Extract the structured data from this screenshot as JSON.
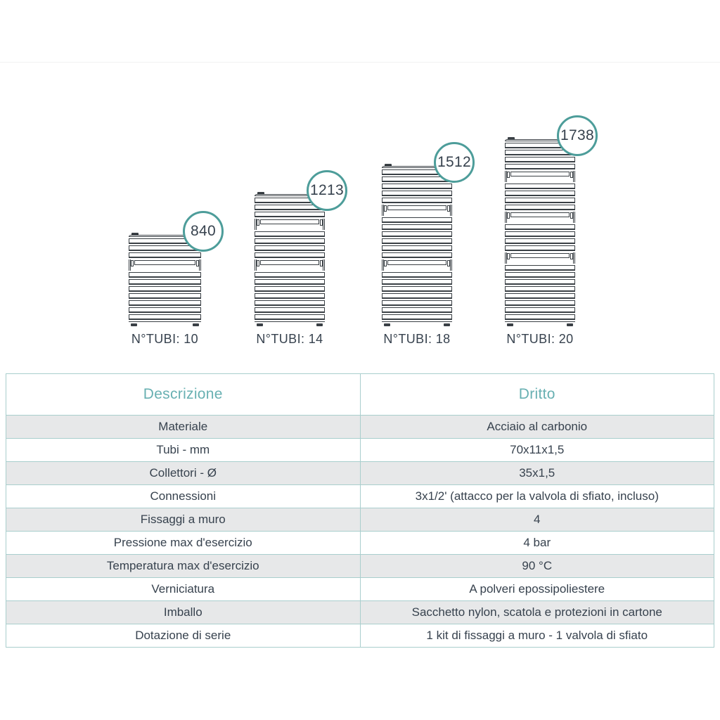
{
  "accent_colors": {
    "teal": "#4d9d9a",
    "header_teal": "#68b0b2",
    "table_border": "#a9cecd",
    "dark_text": "#37424e",
    "row_gray": "#e7e8e9",
    "drawing_line": "#3a4045"
  },
  "diagram": {
    "radiators": [
      {
        "height_label": "840",
        "tubes_label": "N°TUBI: 10",
        "tube_groups": [
          3,
          7
        ]
      },
      {
        "height_label": "1213",
        "tubes_label": "N°TUBI: 14",
        "tube_groups": [
          3,
          4,
          7
        ]
      },
      {
        "height_label": "1512",
        "tubes_label": "N°TUBI: 18",
        "tube_groups": [
          5,
          6,
          7
        ]
      },
      {
        "height_label": "1738",
        "tubes_label": "N°TUBI: 20",
        "tube_groups": [
          4,
          4,
          4,
          8
        ]
      }
    ]
  },
  "table": {
    "headers": [
      "Descrizione",
      "Dritto"
    ],
    "rows": [
      [
        "Materiale",
        "Acciaio al carbonio"
      ],
      [
        "Tubi - mm",
        "70x11x1,5"
      ],
      [
        "Collettori - Ø",
        "35x1,5"
      ],
      [
        "Connessioni",
        "3x1/2' (attacco per la valvola di sfiato, incluso)"
      ],
      [
        "Fissaggi a muro",
        "4"
      ],
      [
        "Pressione max d'esercizio",
        "4 bar"
      ],
      [
        "Temperatura max d'esercizio",
        "90 °C"
      ],
      [
        "Verniciatura",
        "A polveri epossipoliestere"
      ],
      [
        "Imballo",
        "Sacchetto nylon, scatola e protezioni in cartone"
      ],
      [
        "Dotazione di serie",
        "1 kit di fissaggi a muro - 1 valvola di sfiato"
      ]
    ]
  }
}
